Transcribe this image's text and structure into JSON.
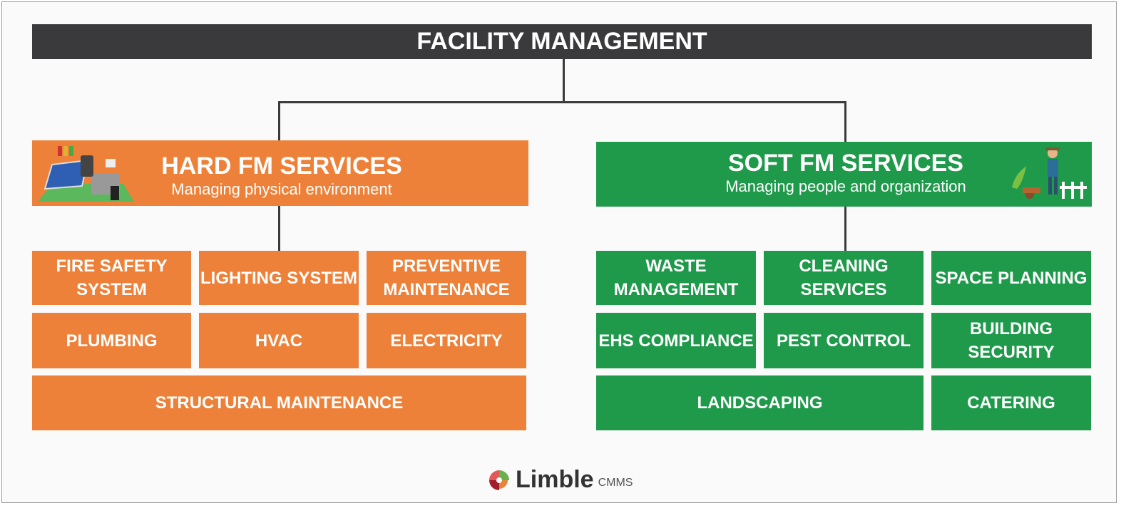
{
  "title": "FACILITY MANAGEMENT",
  "colors": {
    "dark": "#3a3a3c",
    "hard": "#ed8139",
    "soft": "#1f9a4b"
  },
  "hard": {
    "title": "HARD FM SERVICES",
    "subtitle": "Managing physical environment",
    "icon": "solar-panel-illustration",
    "items": [
      "FIRE SAFETY SYSTEM",
      "LIGHTING SYSTEM",
      "PREVENTIVE MAINTENANCE",
      "PLUMBING",
      "HVAC",
      "ELECTRICITY",
      "STRUCTURAL MAINTENANCE"
    ]
  },
  "soft": {
    "title": "SOFT FM SERVICES",
    "subtitle": "Managing people and organization",
    "icon": "gardener-illustration",
    "items": [
      "WASTE MANAGEMENT",
      "CLEANING SERVICES",
      "SPACE PLANNING",
      "EHS COMPLIANCE",
      "PEST CONTROL",
      "BUILDING SECURITY",
      "LANDSCAPING",
      "CATERING"
    ]
  },
  "logo": {
    "name": "Limble",
    "suffix": "CMMS"
  }
}
